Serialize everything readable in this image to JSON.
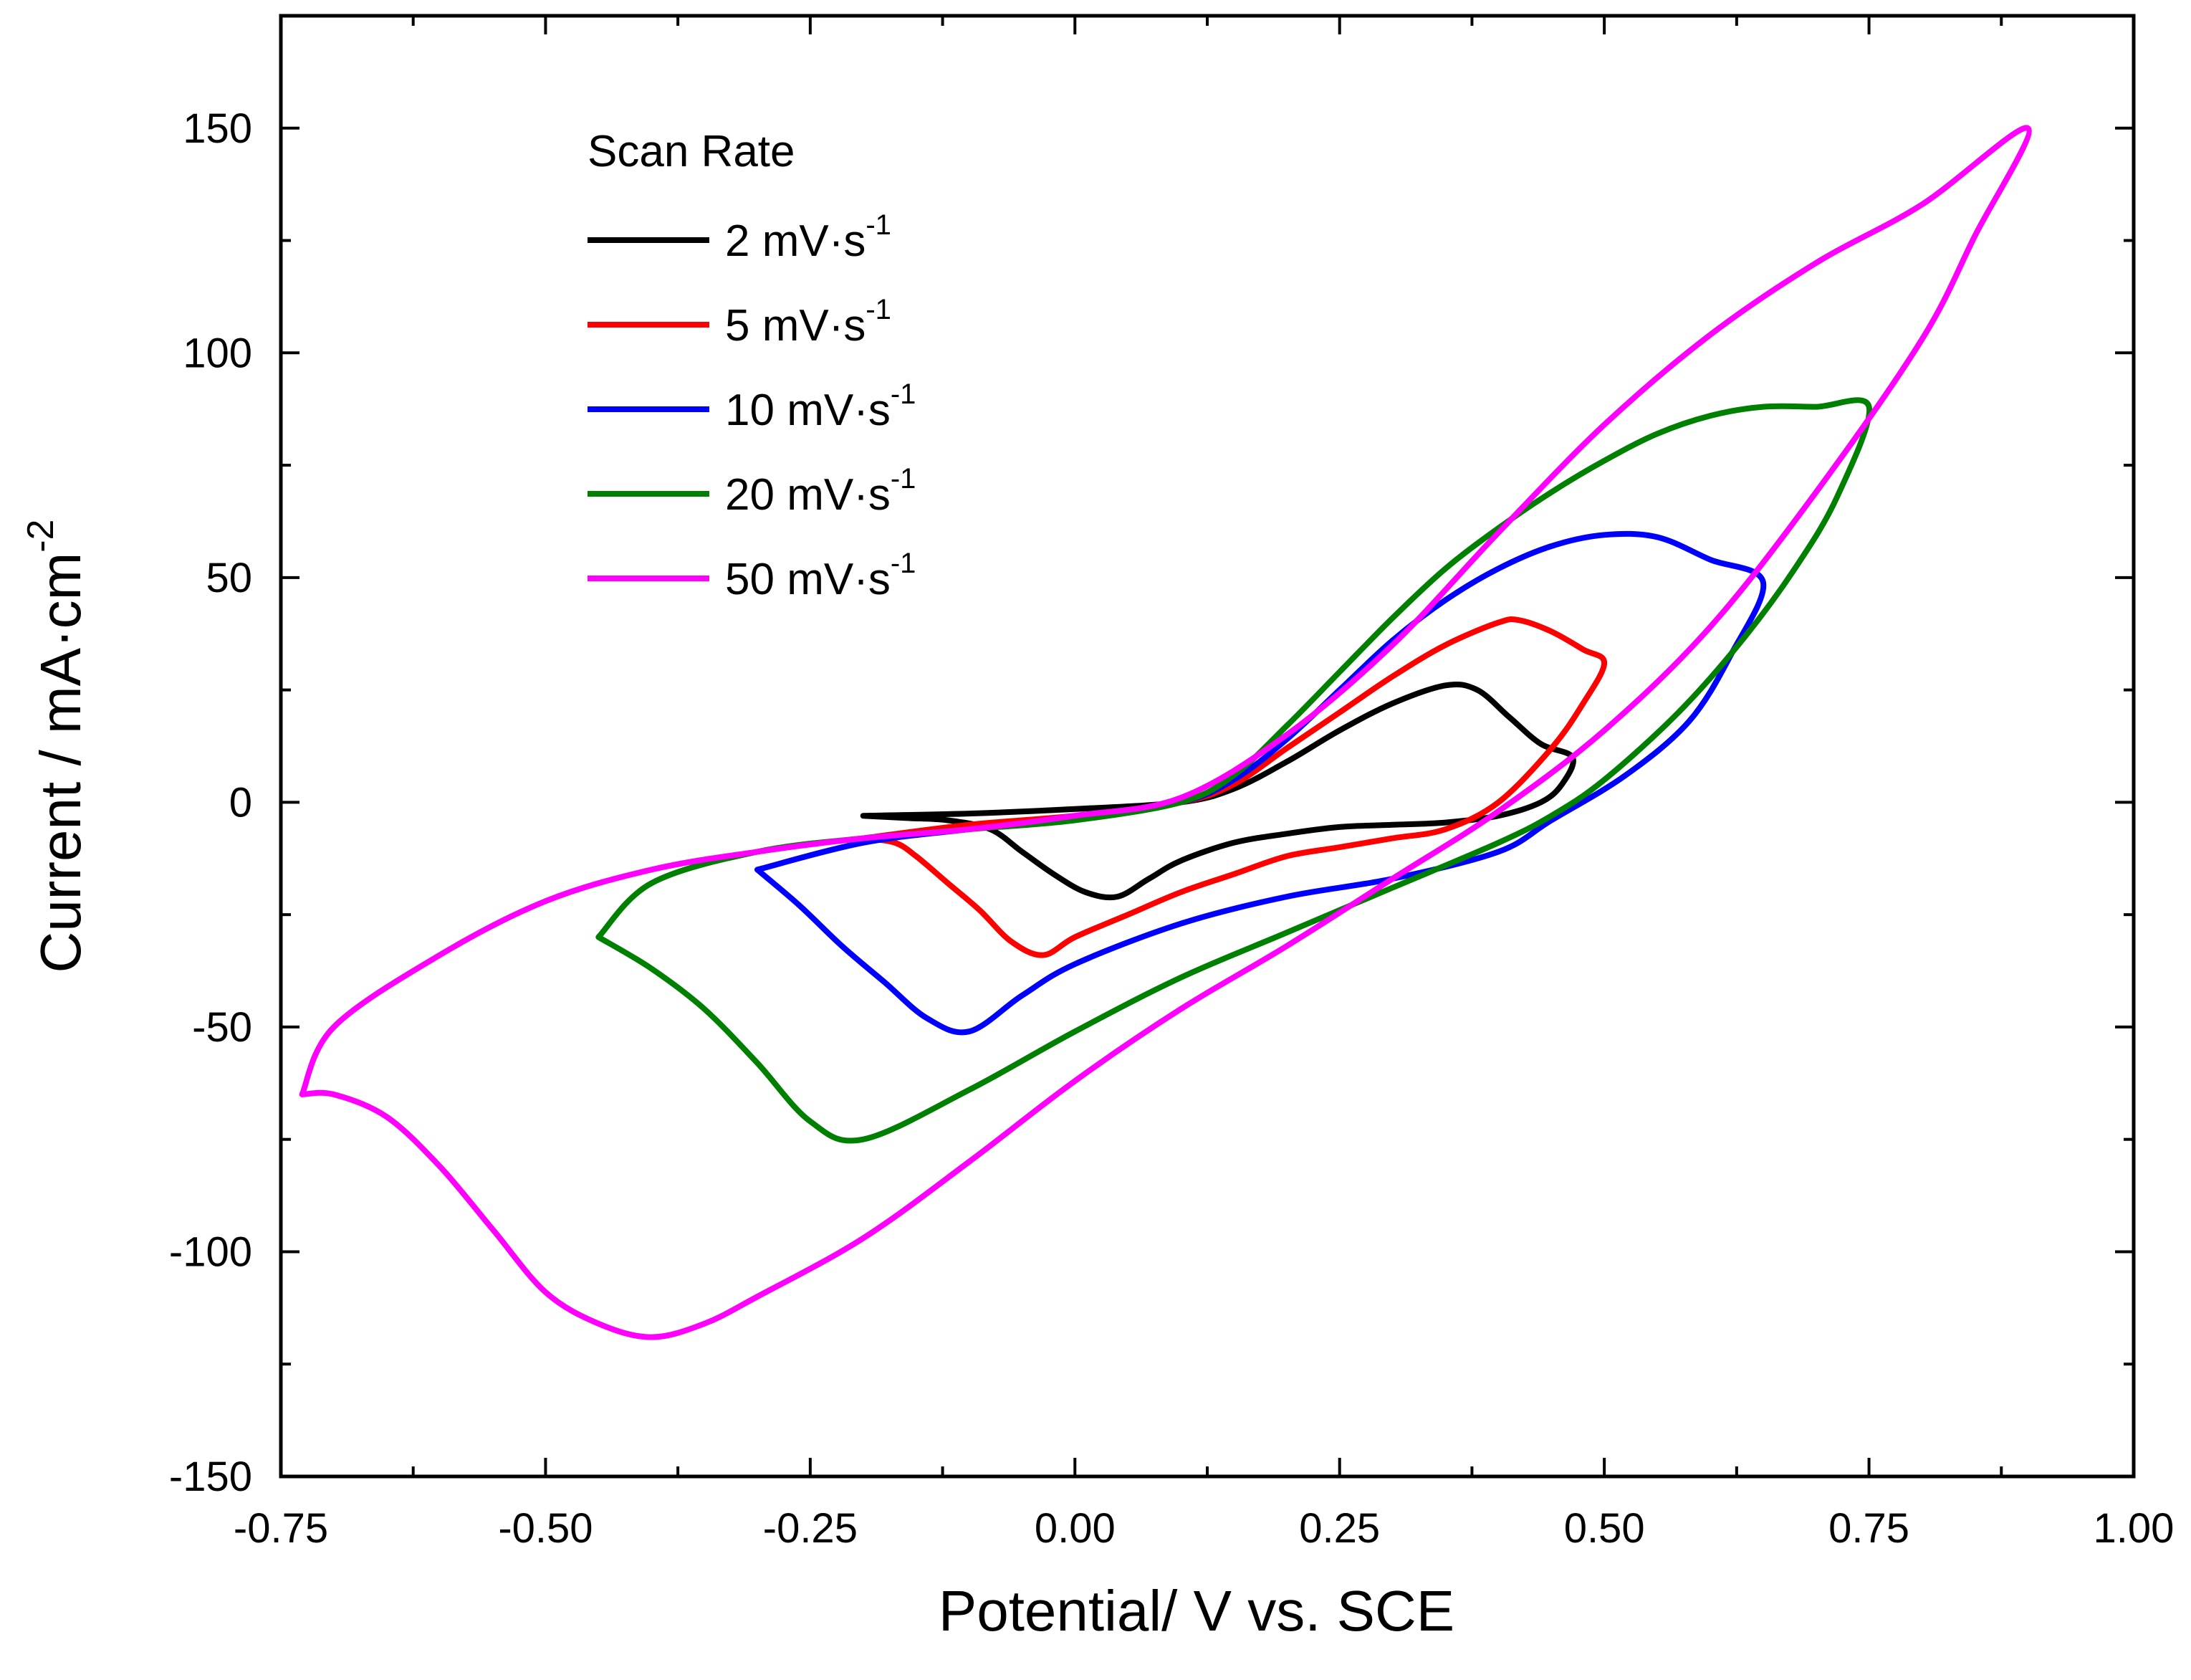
{
  "chart_data": {
    "type": "line",
    "xlabel": "Potential/ V  vs. SCE",
    "ylabel": "Current / mA·cm",
    "ylabel_sup": "-2",
    "xlim": [
      -0.75,
      1.0
    ],
    "ylim": [
      -150,
      175
    ],
    "x_ticks": [
      -0.75,
      -0.5,
      -0.25,
      0.0,
      0.25,
      0.5,
      0.75,
      1.0
    ],
    "x_tick_labels": [
      "-0.75",
      "-0.50",
      "-0.25",
      "0.00",
      "0.25",
      "0.50",
      "0.75",
      "1.00"
    ],
    "y_ticks": [
      -150,
      -100,
      -50,
      0,
      50,
      100,
      150
    ],
    "y_tick_labels": [
      "-150",
      "-100",
      "-50",
      "0",
      "50",
      "100",
      "150"
    ],
    "legend_title": "Scan Rate",
    "legend_position": "top-left",
    "series": [
      {
        "name": "2 mV·s",
        "sup": "-1",
        "color": "#000000",
        "points": [
          [
            -0.2,
            -3
          ],
          [
            -0.1,
            -2.5
          ],
          [
            0.0,
            -1.5
          ],
          [
            0.1,
            0
          ],
          [
            0.15,
            3
          ],
          [
            0.2,
            9
          ],
          [
            0.25,
            16
          ],
          [
            0.3,
            22
          ],
          [
            0.35,
            26
          ],
          [
            0.38,
            25
          ],
          [
            0.41,
            19
          ],
          [
            0.44,
            13
          ],
          [
            0.47,
            10
          ],
          [
            0.46,
            4
          ],
          [
            0.44,
            0
          ],
          [
            0.4,
            -3
          ],
          [
            0.35,
            -4.5
          ],
          [
            0.3,
            -5
          ],
          [
            0.25,
            -5.5
          ],
          [
            0.2,
            -7
          ],
          [
            0.15,
            -9
          ],
          [
            0.1,
            -13
          ],
          [
            0.07,
            -17
          ],
          [
            0.04,
            -21
          ],
          [
            0.01,
            -20
          ],
          [
            -0.02,
            -16
          ],
          [
            -0.05,
            -11
          ],
          [
            -0.08,
            -6
          ],
          [
            -0.12,
            -4
          ],
          [
            -0.16,
            -3.5
          ],
          [
            -0.2,
            -3
          ]
        ]
      },
      {
        "name": "5 mV·s",
        "sup": "-1",
        "color": "#ff0000",
        "points": [
          [
            -0.2,
            -8
          ],
          [
            -0.1,
            -5
          ],
          [
            0.0,
            -3
          ],
          [
            0.1,
            0
          ],
          [
            0.15,
            4
          ],
          [
            0.2,
            12
          ],
          [
            0.25,
            20
          ],
          [
            0.3,
            28
          ],
          [
            0.35,
            35
          ],
          [
            0.4,
            40
          ],
          [
            0.42,
            40.5
          ],
          [
            0.45,
            38
          ],
          [
            0.48,
            34
          ],
          [
            0.5,
            31
          ],
          [
            0.48,
            22
          ],
          [
            0.45,
            12
          ],
          [
            0.4,
            0
          ],
          [
            0.35,
            -6
          ],
          [
            0.3,
            -8
          ],
          [
            0.25,
            -10
          ],
          [
            0.2,
            -12
          ],
          [
            0.15,
            -16
          ],
          [
            0.1,
            -20
          ],
          [
            0.05,
            -25
          ],
          [
            0.0,
            -30
          ],
          [
            -0.03,
            -34
          ],
          [
            -0.06,
            -31
          ],
          [
            -0.09,
            -24
          ],
          [
            -0.12,
            -18
          ],
          [
            -0.15,
            -12
          ],
          [
            -0.17,
            -9
          ],
          [
            -0.2,
            -8
          ]
        ]
      },
      {
        "name": "10 mV·s",
        "sup": "-1",
        "color": "#0000ff",
        "points": [
          [
            -0.3,
            -15
          ],
          [
            -0.2,
            -9
          ],
          [
            -0.1,
            -6
          ],
          [
            0.0,
            -3.5
          ],
          [
            0.1,
            0
          ],
          [
            0.15,
            5
          ],
          [
            0.2,
            14
          ],
          [
            0.25,
            25
          ],
          [
            0.3,
            36
          ],
          [
            0.35,
            45
          ],
          [
            0.4,
            52
          ],
          [
            0.45,
            57
          ],
          [
            0.5,
            59.5
          ],
          [
            0.55,
            59
          ],
          [
            0.6,
            54
          ],
          [
            0.65,
            49
          ],
          [
            0.62,
            33
          ],
          [
            0.58,
            18
          ],
          [
            0.52,
            6
          ],
          [
            0.45,
            -4
          ],
          [
            0.4,
            -11
          ],
          [
            0.3,
            -17
          ],
          [
            0.2,
            -21
          ],
          [
            0.1,
            -27
          ],
          [
            0.0,
            -36
          ],
          [
            -0.05,
            -43
          ],
          [
            -0.1,
            -51
          ],
          [
            -0.14,
            -48
          ],
          [
            -0.18,
            -40
          ],
          [
            -0.22,
            -32
          ],
          [
            -0.26,
            -23
          ],
          [
            -0.3,
            -15
          ]
        ]
      },
      {
        "name": "20 mV·s",
        "sup": "-1",
        "color": "#008000",
        "points": [
          [
            -0.45,
            -30
          ],
          [
            -0.4,
            -18
          ],
          [
            -0.3,
            -11
          ],
          [
            -0.2,
            -8
          ],
          [
            -0.1,
            -6
          ],
          [
            0.0,
            -4
          ],
          [
            0.1,
            0
          ],
          [
            0.15,
            6
          ],
          [
            0.2,
            17
          ],
          [
            0.25,
            29
          ],
          [
            0.3,
            41
          ],
          [
            0.35,
            52
          ],
          [
            0.4,
            61
          ],
          [
            0.45,
            69
          ],
          [
            0.5,
            76
          ],
          [
            0.55,
            82
          ],
          [
            0.6,
            86
          ],
          [
            0.65,
            88
          ],
          [
            0.7,
            88
          ],
          [
            0.75,
            88
          ],
          [
            0.72,
            68
          ],
          [
            0.68,
            52
          ],
          [
            0.63,
            36
          ],
          [
            0.57,
            20
          ],
          [
            0.5,
            5
          ],
          [
            0.45,
            -3
          ],
          [
            0.4,
            -9
          ],
          [
            0.3,
            -19
          ],
          [
            0.2,
            -29
          ],
          [
            0.1,
            -39
          ],
          [
            0.0,
            -51
          ],
          [
            -0.1,
            -64
          ],
          [
            -0.2,
            -75
          ],
          [
            -0.25,
            -71
          ],
          [
            -0.3,
            -58
          ],
          [
            -0.35,
            -46
          ],
          [
            -0.4,
            -37
          ],
          [
            -0.45,
            -30
          ]
        ]
      },
      {
        "name": "50 mV·s",
        "sup": "-1",
        "color": "#ff00ff",
        "points": [
          [
            -0.73,
            -65
          ],
          [
            -0.7,
            -50
          ],
          [
            -0.6,
            -34
          ],
          [
            -0.5,
            -22
          ],
          [
            -0.4,
            -15
          ],
          [
            -0.3,
            -11
          ],
          [
            -0.2,
            -8
          ],
          [
            -0.1,
            -6
          ],
          [
            0.0,
            -3
          ],
          [
            0.1,
            1
          ],
          [
            0.2,
            15
          ],
          [
            0.3,
            35
          ],
          [
            0.4,
            60
          ],
          [
            0.5,
            84
          ],
          [
            0.6,
            104
          ],
          [
            0.7,
            120
          ],
          [
            0.8,
            133
          ],
          [
            0.9,
            150
          ],
          [
            0.85,
            126
          ],
          [
            0.8,
            103
          ],
          [
            0.7,
            69
          ],
          [
            0.6,
            39
          ],
          [
            0.5,
            16
          ],
          [
            0.4,
            -2
          ],
          [
            0.3,
            -17
          ],
          [
            0.2,
            -32
          ],
          [
            0.1,
            -46
          ],
          [
            0.0,
            -62
          ],
          [
            -0.1,
            -80
          ],
          [
            -0.2,
            -97
          ],
          [
            -0.3,
            -110
          ],
          [
            -0.35,
            -116
          ],
          [
            -0.4,
            -119
          ],
          [
            -0.45,
            -116
          ],
          [
            -0.5,
            -109
          ],
          [
            -0.55,
            -95
          ],
          [
            -0.6,
            -81
          ],
          [
            -0.65,
            -70
          ],
          [
            -0.7,
            -65
          ],
          [
            -0.73,
            -65
          ]
        ]
      }
    ]
  }
}
